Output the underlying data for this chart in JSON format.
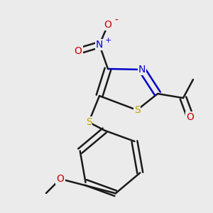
{
  "bg_color": "#ebebeb",
  "bond_color": "#1a1a1a",
  "line_width": 1.8,
  "colors": {
    "S": "#b8a000",
    "N": "#0000cc",
    "O": "#cc0000",
    "C": "#1a1a1a",
    "bond": "#1a1a1a"
  },
  "figsize": [
    3.0,
    3.0
  ],
  "dpi": 100
}
